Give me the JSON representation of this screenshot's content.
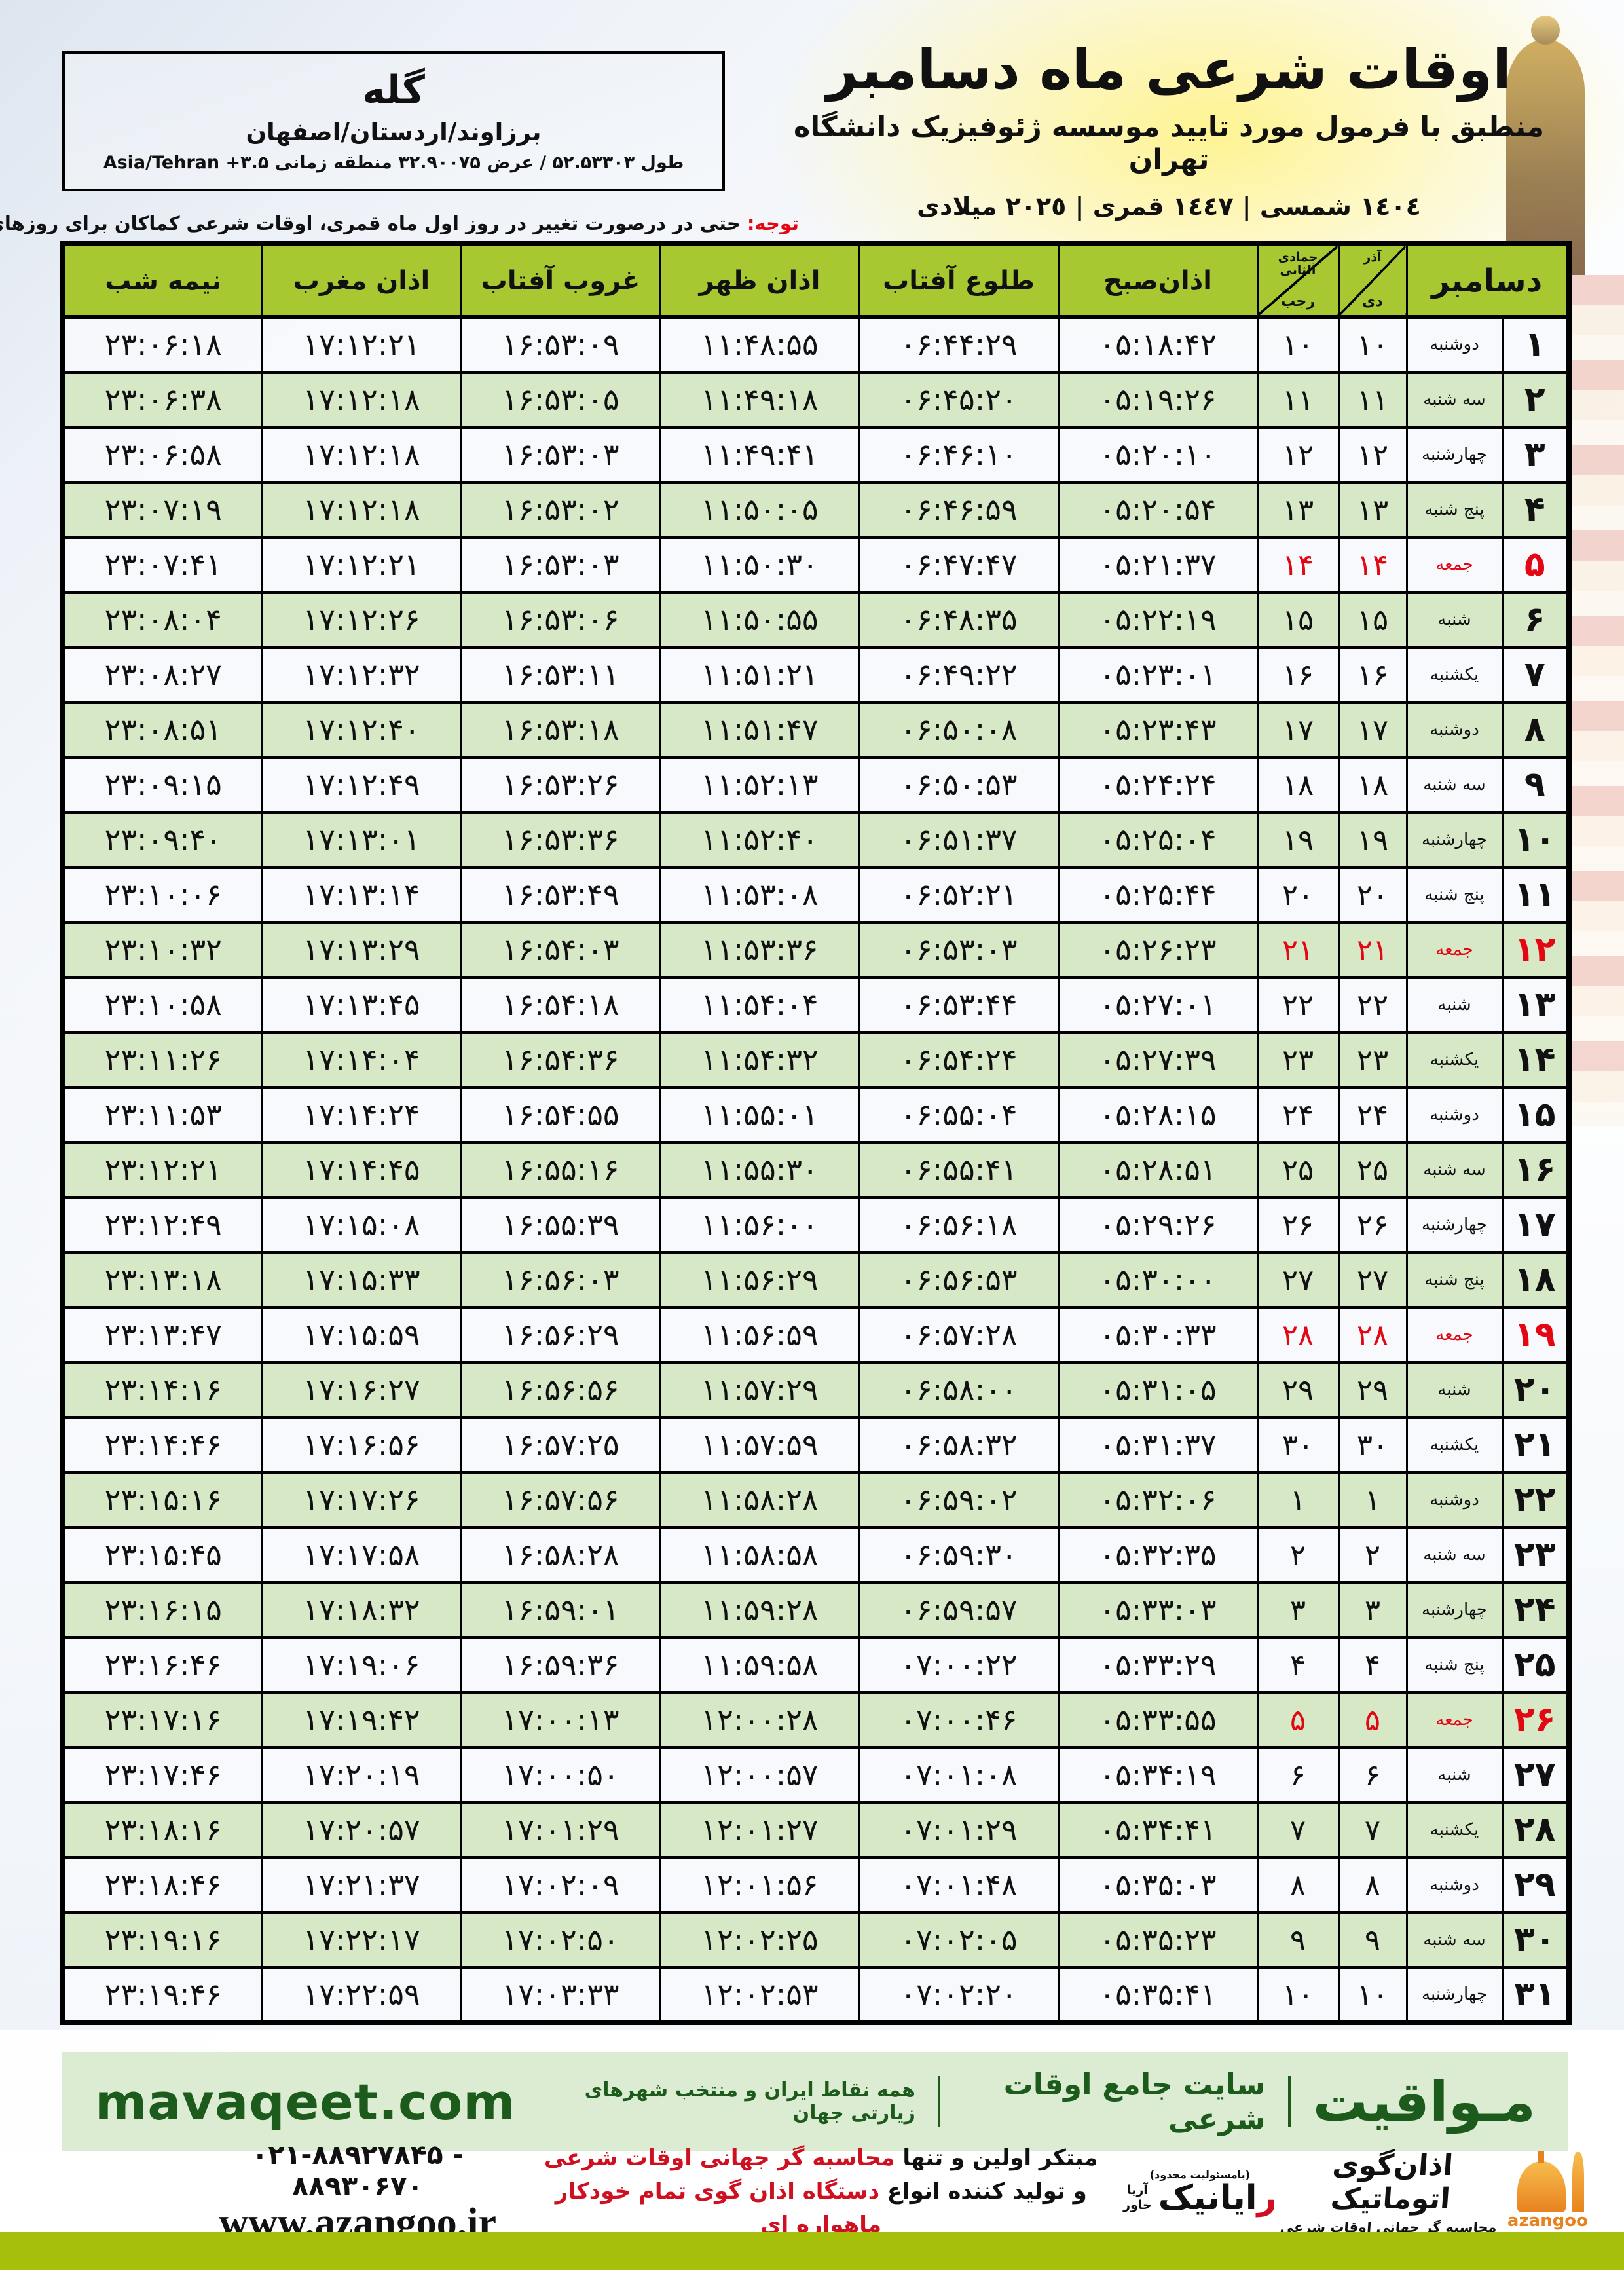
{
  "location_box": {
    "city": "گله",
    "region": "برزاوند/اردستان/اصفهان",
    "coords_fa": "طول ۵۲.۵۳۳۰۳ / عرض ۳۲.۹۰۰۷۵ منطقه زمانی",
    "timezone": "Asia/Tehran +۳.۵"
  },
  "header": {
    "title": "اوقات شرعی ماه دسامبر",
    "subtitle": "منطبق با فرمول مورد تایید موسسه ژئوفیزیک دانشگاه تهران",
    "dates": "١٤٠٤ شمسی | ١٤٤٧ قمری | ٢٠٢٥ میلادی"
  },
  "notice": {
    "label": "توجه:",
    "text": " حتی در درصورت تغییر در روز اول ماه قمری، اوقات شرعی کماکان برای روزهای شمسی و میلادی معتبر است."
  },
  "table": {
    "headers": {
      "december": "دسامبر",
      "solar_top": "آذر",
      "solar_bottom": "دی",
      "lunar_top": "جمادی الثانی",
      "lunar_bottom": "رجب",
      "fajr": "اذان‌صبح",
      "sunrise": "طلوع آفتاب",
      "dhuhr": "اذان ظهر",
      "sunset": "غروب آفتاب",
      "maghrib": "اذان مغرب",
      "midnight": "نیمه شب"
    },
    "rows": [
      {
        "day": 1,
        "weekday": "دوشنبه",
        "solar": 10,
        "lunar": 10,
        "fajr": "05:18:42",
        "sunrise": "06:44:29",
        "dhuhr": "11:48:55",
        "sunset": "16:53:09",
        "maghrib": "17:12:21",
        "midnight": "23:06:18",
        "friday": false
      },
      {
        "day": 2,
        "weekday": "سه شنبه",
        "solar": 11,
        "lunar": 11,
        "fajr": "05:19:26",
        "sunrise": "06:45:20",
        "dhuhr": "11:49:18",
        "sunset": "16:53:05",
        "maghrib": "17:12:18",
        "midnight": "23:06:38",
        "friday": false
      },
      {
        "day": 3,
        "weekday": "چهارشنبه",
        "solar": 12,
        "lunar": 12,
        "fajr": "05:20:10",
        "sunrise": "06:46:10",
        "dhuhr": "11:49:41",
        "sunset": "16:53:03",
        "maghrib": "17:12:18",
        "midnight": "23:06:58",
        "friday": false
      },
      {
        "day": 4,
        "weekday": "پنج شنبه",
        "solar": 13,
        "lunar": 13,
        "fajr": "05:20:54",
        "sunrise": "06:46:59",
        "dhuhr": "11:50:05",
        "sunset": "16:53:02",
        "maghrib": "17:12:18",
        "midnight": "23:07:19",
        "friday": false
      },
      {
        "day": 5,
        "weekday": "جمعه",
        "solar": 14,
        "lunar": 14,
        "fajr": "05:21:37",
        "sunrise": "06:47:47",
        "dhuhr": "11:50:30",
        "sunset": "16:53:03",
        "maghrib": "17:12:21",
        "midnight": "23:07:41",
        "friday": true
      },
      {
        "day": 6,
        "weekday": "شنبه",
        "solar": 15,
        "lunar": 15,
        "fajr": "05:22:19",
        "sunrise": "06:48:35",
        "dhuhr": "11:50:55",
        "sunset": "16:53:06",
        "maghrib": "17:12:26",
        "midnight": "23:08:04",
        "friday": false
      },
      {
        "day": 7,
        "weekday": "یکشنبه",
        "solar": 16,
        "lunar": 16,
        "fajr": "05:23:01",
        "sunrise": "06:49:22",
        "dhuhr": "11:51:21",
        "sunset": "16:53:11",
        "maghrib": "17:12:32",
        "midnight": "23:08:27",
        "friday": false
      },
      {
        "day": 8,
        "weekday": "دوشنبه",
        "solar": 17,
        "lunar": 17,
        "fajr": "05:23:43",
        "sunrise": "06:50:08",
        "dhuhr": "11:51:47",
        "sunset": "16:53:18",
        "maghrib": "17:12:40",
        "midnight": "23:08:51",
        "friday": false
      },
      {
        "day": 9,
        "weekday": "سه شنبه",
        "solar": 18,
        "lunar": 18,
        "fajr": "05:24:24",
        "sunrise": "06:50:53",
        "dhuhr": "11:52:13",
        "sunset": "16:53:26",
        "maghrib": "17:12:49",
        "midnight": "23:09:15",
        "friday": false
      },
      {
        "day": 10,
        "weekday": "چهارشنبه",
        "solar": 19,
        "lunar": 19,
        "fajr": "05:25:04",
        "sunrise": "06:51:37",
        "dhuhr": "11:52:40",
        "sunset": "16:53:36",
        "maghrib": "17:13:01",
        "midnight": "23:09:40",
        "friday": false
      },
      {
        "day": 11,
        "weekday": "پنج شنبه",
        "solar": 20,
        "lunar": 20,
        "fajr": "05:25:44",
        "sunrise": "06:52:21",
        "dhuhr": "11:53:08",
        "sunset": "16:53:49",
        "maghrib": "17:13:14",
        "midnight": "23:10:06",
        "friday": false
      },
      {
        "day": 12,
        "weekday": "جمعه",
        "solar": 21,
        "lunar": 21,
        "fajr": "05:26:23",
        "sunrise": "06:53:03",
        "dhuhr": "11:53:36",
        "sunset": "16:54:03",
        "maghrib": "17:13:29",
        "midnight": "23:10:32",
        "friday": true
      },
      {
        "day": 13,
        "weekday": "شنبه",
        "solar": 22,
        "lunar": 22,
        "fajr": "05:27:01",
        "sunrise": "06:53:44",
        "dhuhr": "11:54:04",
        "sunset": "16:54:18",
        "maghrib": "17:13:45",
        "midnight": "23:10:58",
        "friday": false
      },
      {
        "day": 14,
        "weekday": "یکشنبه",
        "solar": 23,
        "lunar": 23,
        "fajr": "05:27:39",
        "sunrise": "06:54:24",
        "dhuhr": "11:54:32",
        "sunset": "16:54:36",
        "maghrib": "17:14:04",
        "midnight": "23:11:26",
        "friday": false
      },
      {
        "day": 15,
        "weekday": "دوشنبه",
        "solar": 24,
        "lunar": 24,
        "fajr": "05:28:15",
        "sunrise": "06:55:04",
        "dhuhr": "11:55:01",
        "sunset": "16:54:55",
        "maghrib": "17:14:24",
        "midnight": "23:11:53",
        "friday": false
      },
      {
        "day": 16,
        "weekday": "سه شنبه",
        "solar": 25,
        "lunar": 25,
        "fajr": "05:28:51",
        "sunrise": "06:55:41",
        "dhuhr": "11:55:30",
        "sunset": "16:55:16",
        "maghrib": "17:14:45",
        "midnight": "23:12:21",
        "friday": false
      },
      {
        "day": 17,
        "weekday": "چهارشنبه",
        "solar": 26,
        "lunar": 26,
        "fajr": "05:29:26",
        "sunrise": "06:56:18",
        "dhuhr": "11:56:00",
        "sunset": "16:55:39",
        "maghrib": "17:15:08",
        "midnight": "23:12:49",
        "friday": false
      },
      {
        "day": 18,
        "weekday": "پنج شنبه",
        "solar": 27,
        "lunar": 27,
        "fajr": "05:30:00",
        "sunrise": "06:56:53",
        "dhuhr": "11:56:29",
        "sunset": "16:56:03",
        "maghrib": "17:15:33",
        "midnight": "23:13:18",
        "friday": false
      },
      {
        "day": 19,
        "weekday": "جمعه",
        "solar": 28,
        "lunar": 28,
        "fajr": "05:30:33",
        "sunrise": "06:57:28",
        "dhuhr": "11:56:59",
        "sunset": "16:56:29",
        "maghrib": "17:15:59",
        "midnight": "23:13:47",
        "friday": true
      },
      {
        "day": 20,
        "weekday": "شنبه",
        "solar": 29,
        "lunar": 29,
        "fajr": "05:31:05",
        "sunrise": "06:58:00",
        "dhuhr": "11:57:29",
        "sunset": "16:56:56",
        "maghrib": "17:16:27",
        "midnight": "23:14:16",
        "friday": false
      },
      {
        "day": 21,
        "weekday": "یکشنبه",
        "solar": 30,
        "lunar": 30,
        "fajr": "05:31:37",
        "sunrise": "06:58:32",
        "dhuhr": "11:57:59",
        "sunset": "16:57:25",
        "maghrib": "17:16:56",
        "midnight": "23:14:46",
        "friday": false
      },
      {
        "day": 22,
        "weekday": "دوشنبه",
        "solar": 1,
        "lunar": 1,
        "fajr": "05:32:06",
        "sunrise": "06:59:02",
        "dhuhr": "11:58:28",
        "sunset": "16:57:56",
        "maghrib": "17:17:26",
        "midnight": "23:15:16",
        "friday": false
      },
      {
        "day": 23,
        "weekday": "سه شنبه",
        "solar": 2,
        "lunar": 2,
        "fajr": "05:32:35",
        "sunrise": "06:59:30",
        "dhuhr": "11:58:58",
        "sunset": "16:58:28",
        "maghrib": "17:17:58",
        "midnight": "23:15:45",
        "friday": false
      },
      {
        "day": 24,
        "weekday": "چهارشنبه",
        "solar": 3,
        "lunar": 3,
        "fajr": "05:33:03",
        "sunrise": "06:59:57",
        "dhuhr": "11:59:28",
        "sunset": "16:59:01",
        "maghrib": "17:18:32",
        "midnight": "23:16:15",
        "friday": false
      },
      {
        "day": 25,
        "weekday": "پنج شنبه",
        "solar": 4,
        "lunar": 4,
        "fajr": "05:33:29",
        "sunrise": "07:00:22",
        "dhuhr": "11:59:58",
        "sunset": "16:59:36",
        "maghrib": "17:19:06",
        "midnight": "23:16:46",
        "friday": false
      },
      {
        "day": 26,
        "weekday": "جمعه",
        "solar": 5,
        "lunar": 5,
        "fajr": "05:33:55",
        "sunrise": "07:00:46",
        "dhuhr": "12:00:28",
        "sunset": "17:00:13",
        "maghrib": "17:19:42",
        "midnight": "23:17:16",
        "friday": true
      },
      {
        "day": 27,
        "weekday": "شنبه",
        "solar": 6,
        "lunar": 6,
        "fajr": "05:34:19",
        "sunrise": "07:01:08",
        "dhuhr": "12:00:57",
        "sunset": "17:00:50",
        "maghrib": "17:20:19",
        "midnight": "23:17:46",
        "friday": false
      },
      {
        "day": 28,
        "weekday": "یکشنبه",
        "solar": 7,
        "lunar": 7,
        "fajr": "05:34:41",
        "sunrise": "07:01:29",
        "dhuhr": "12:01:27",
        "sunset": "17:01:29",
        "maghrib": "17:20:57",
        "midnight": "23:18:16",
        "friday": false
      },
      {
        "day": 29,
        "weekday": "دوشنبه",
        "solar": 8,
        "lunar": 8,
        "fajr": "05:35:03",
        "sunrise": "07:01:48",
        "dhuhr": "12:01:56",
        "sunset": "17:02:09",
        "maghrib": "17:21:37",
        "midnight": "23:18:46",
        "friday": false
      },
      {
        "day": 30,
        "weekday": "سه شنبه",
        "solar": 9,
        "lunar": 9,
        "fajr": "05:35:23",
        "sunrise": "07:02:05",
        "dhuhr": "12:02:25",
        "sunset": "17:02:50",
        "maghrib": "17:22:17",
        "midnight": "23:19:16",
        "friday": false
      },
      {
        "day": 31,
        "weekday": "چهارشنبه",
        "solar": 10,
        "lunar": 10,
        "fajr": "05:35:41",
        "sunrise": "07:02:20",
        "dhuhr": "12:02:53",
        "sunset": "17:03:33",
        "maghrib": "17:22:59",
        "midnight": "23:19:46",
        "friday": false
      }
    ]
  },
  "footer": {
    "mavaqeet": {
      "brand": "مـواقیت",
      "tagline": "سایت جامع اوقات شرعی",
      "subtitle": "همه نقاط ایران و منتخب شهرهای زیارتی جهان",
      "url": "mavaqeet.com"
    },
    "contact": {
      "phone": "۰۲۱-۸۸۹۲۷۸۴۵ - ۸۸۹۳۰۶۷۰",
      "website": "www.azangoo.ir"
    },
    "promo": {
      "line1_black": "مبتکر اولین و تنها ",
      "line1_red": "محاسبه گر جهانی اوقات شرعی",
      "line2_black": "و تولید کننده انواع ",
      "line2_red": "دستگاه اذان گوی تمام خودکار ماهواره ای"
    },
    "rayanik": {
      "note": "(بامسئولیت محدود)",
      "name_first": "ر",
      "name_rest": "ایانیک",
      "side_top": "آریا",
      "side_bottom": "خاور"
    },
    "azangoo": {
      "title": "اذان‌گوی اتوماتیک",
      "subtitle": "محاسبه گر جهانی اوقات شرعی",
      "brand": "azangoo"
    }
  },
  "colors": {
    "header_green": "#a8c832",
    "row_green": "#d7e8c6",
    "mavaqeet_bg": "#dcecd2",
    "mavaqeet_text": "#1d5b1d",
    "bottom_bar": "#a6bf0b",
    "friday_red": "#e30613",
    "azangoo_orange": "#e8821f"
  }
}
